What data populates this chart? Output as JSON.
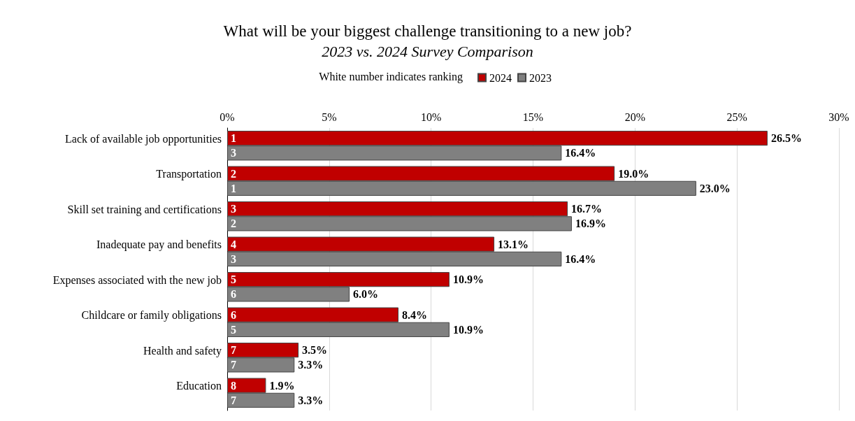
{
  "chart_data": {
    "type": "bar",
    "orientation": "horizontal",
    "title": "What will be your biggest challenge transitioning to a new job?",
    "subtitle": "2023 vs. 2024 Survey Comparison",
    "categories": [
      "Lack of available job opportunities",
      "Transportation",
      "Skill set training and certifications",
      "Inadequate pay and benefits",
      "Expenses associated with the new job",
      "Childcare or family obligations",
      "Health and safety",
      "Education"
    ],
    "series": [
      {
        "name": "2024",
        "color": "#c00000",
        "values": [
          26.5,
          19.0,
          16.7,
          13.1,
          10.9,
          8.4,
          3.5,
          1.9
        ],
        "value_labels": [
          "26.5%",
          "19.0%",
          "16.7%",
          "13.1%",
          "10.9%",
          "8.4%",
          "3.5%",
          "1.9%"
        ]
      },
      {
        "name": "2023",
        "color": "#808080",
        "values": [
          16.4,
          23.0,
          16.9,
          16.4,
          6.0,
          10.9,
          3.3,
          3.3
        ],
        "value_labels": [
          "16.4%",
          "23.0%",
          "16.9%",
          "16.4%",
          "6.0%",
          "10.9%",
          "3.3%",
          "3.3%"
        ]
      }
    ],
    "xlim": [
      0,
      30
    ],
    "xticks": [
      {
        "value": 0,
        "label": "0%"
      },
      {
        "value": 5,
        "label": "5%"
      },
      {
        "value": 10,
        "label": "10%"
      },
      {
        "value": 15,
        "label": "15%"
      },
      {
        "value": 20,
        "label": "20%"
      },
      {
        "value": 25,
        "label": "25%"
      },
      {
        "value": 30,
        "label": "30%"
      }
    ],
    "grid": "x",
    "legend": "top",
    "annotations": [
      "White number indicates ranking",
      "1",
      "3",
      "2",
      "1",
      "3",
      "2",
      "4",
      "3",
      "5",
      "6",
      "6",
      "5",
      "7",
      "7",
      "8",
      "7"
    ]
  }
}
